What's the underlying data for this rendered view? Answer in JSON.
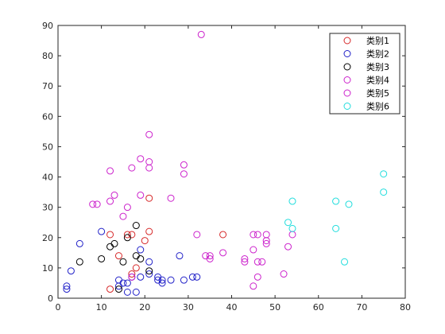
{
  "chart_data": {
    "type": "scatter",
    "xlim": [
      0,
      80
    ],
    "ylim": [
      0,
      90
    ],
    "x_ticks": [
      0,
      10,
      20,
      30,
      40,
      50,
      60,
      70,
      80
    ],
    "y_ticks": [
      0,
      10,
      20,
      30,
      40,
      50,
      60,
      70,
      80,
      90
    ],
    "grid": false,
    "legend_position": "top-right",
    "series": [
      {
        "name": "类别1",
        "color": "#d62728",
        "points": [
          [
            12,
            3
          ],
          [
            12,
            21
          ],
          [
            14,
            14
          ],
          [
            16,
            21
          ],
          [
            17,
            21
          ],
          [
            17,
            8
          ],
          [
            18,
            10
          ],
          [
            20,
            19
          ],
          [
            21,
            33
          ],
          [
            21,
            22
          ],
          [
            38,
            21
          ]
        ]
      },
      {
        "name": "类别2",
        "color": "#2020c8",
        "points": [
          [
            2,
            3
          ],
          [
            2,
            4
          ],
          [
            3,
            9
          ],
          [
            5,
            18
          ],
          [
            10,
            22
          ],
          [
            14,
            6
          ],
          [
            14,
            4
          ],
          [
            15,
            5
          ],
          [
            16,
            5
          ],
          [
            16,
            2
          ],
          [
            17,
            7
          ],
          [
            18,
            2
          ],
          [
            19,
            7
          ],
          [
            19,
            16
          ],
          [
            21,
            12
          ],
          [
            21,
            8
          ],
          [
            23,
            7
          ],
          [
            23,
            6
          ],
          [
            24,
            6
          ],
          [
            24,
            5
          ],
          [
            26,
            6
          ],
          [
            28,
            14
          ],
          [
            29,
            6
          ],
          [
            31,
            7
          ],
          [
            32,
            7
          ]
        ]
      },
      {
        "name": "类别3",
        "color": "#000000",
        "points": [
          [
            5,
            12
          ],
          [
            10,
            13
          ],
          [
            12,
            17
          ],
          [
            13,
            18
          ],
          [
            14,
            3
          ],
          [
            15,
            12
          ],
          [
            16,
            20
          ],
          [
            18,
            24
          ],
          [
            18,
            14
          ],
          [
            19,
            13
          ],
          [
            21,
            9
          ]
        ]
      },
      {
        "name": "类别4",
        "color": "#cc22cc",
        "points": [
          [
            8,
            31
          ],
          [
            9,
            31
          ],
          [
            12,
            42
          ],
          [
            12,
            32
          ],
          [
            13,
            34
          ],
          [
            15,
            27
          ],
          [
            16,
            30
          ],
          [
            17,
            43
          ],
          [
            17,
            7
          ],
          [
            19,
            46
          ],
          [
            19,
            34
          ],
          [
            21,
            54
          ],
          [
            21,
            45
          ],
          [
            21,
            43
          ],
          [
            26,
            33
          ],
          [
            29,
            44
          ],
          [
            29,
            41
          ],
          [
            32,
            21
          ],
          [
            33,
            87
          ],
          [
            34,
            14
          ]
        ]
      },
      {
        "name": "类别5",
        "color": "#cc22cc",
        "points": [
          [
            35,
            13
          ],
          [
            35,
            14
          ],
          [
            38,
            15
          ],
          [
            43,
            13
          ],
          [
            43,
            12
          ],
          [
            45,
            21
          ],
          [
            45,
            16
          ],
          [
            45,
            4
          ],
          [
            46,
            21
          ],
          [
            46,
            12
          ],
          [
            46,
            7
          ],
          [
            47,
            12
          ],
          [
            48,
            21
          ],
          [
            48,
            19
          ],
          [
            48,
            18
          ],
          [
            52,
            8
          ],
          [
            53,
            17
          ],
          [
            54,
            21
          ]
        ]
      },
      {
        "name": "类别6",
        "color": "#22dddd",
        "points": [
          [
            53,
            25
          ],
          [
            54,
            32
          ],
          [
            54,
            23
          ],
          [
            64,
            32
          ],
          [
            64,
            23
          ],
          [
            66,
            12
          ],
          [
            67,
            31
          ],
          [
            75,
            41
          ],
          [
            75,
            35
          ]
        ]
      }
    ]
  }
}
